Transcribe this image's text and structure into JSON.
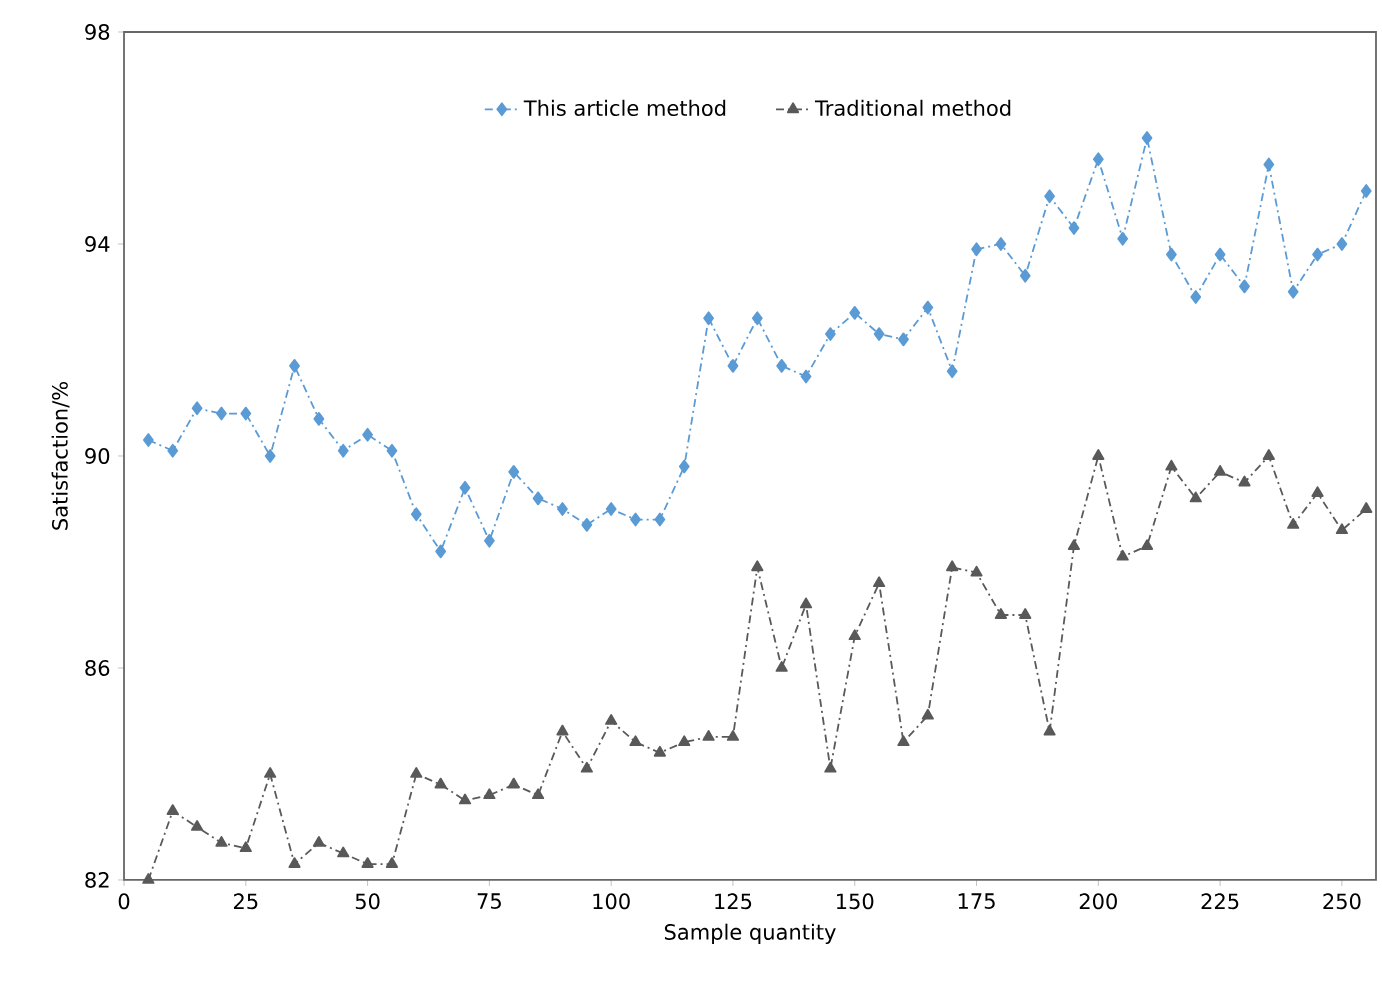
{
  "chart_data": {
    "type": "line",
    "xlabel": "Sample quantity",
    "ylabel": "Satisfaction/%",
    "x": [
      5,
      10,
      15,
      20,
      25,
      30,
      35,
      40,
      45,
      50,
      55,
      60,
      65,
      70,
      75,
      80,
      85,
      90,
      95,
      100,
      105,
      110,
      115,
      120,
      125,
      130,
      135,
      140,
      145,
      150,
      155,
      160,
      165,
      170,
      175,
      180,
      185,
      190,
      195,
      200,
      205,
      210,
      215,
      220,
      225,
      230,
      235,
      240,
      245,
      250,
      255
    ],
    "series": [
      {
        "name": "This article method",
        "color": "#5b9bd5",
        "marker": "diamond",
        "values": [
          90.3,
          90.1,
          90.9,
          90.8,
          90.8,
          90.0,
          91.7,
          90.7,
          90.1,
          90.4,
          90.1,
          88.9,
          88.2,
          89.4,
          88.4,
          89.7,
          89.2,
          89.0,
          88.7,
          89.0,
          88.8,
          88.8,
          89.8,
          92.6,
          91.7,
          92.6,
          91.7,
          91.5,
          92.3,
          92.7,
          92.3,
          92.2,
          92.8,
          91.6,
          93.9,
          94.0,
          93.4,
          94.9,
          94.3,
          95.6,
          94.1,
          96.0,
          93.8,
          93.0,
          93.8,
          93.2,
          95.5,
          93.1,
          93.8,
          94.0,
          95.0
        ]
      },
      {
        "name": "Traditional method",
        "color": "#595959",
        "marker": "triangle",
        "values": [
          82.0,
          83.3,
          83.0,
          82.7,
          82.6,
          84.0,
          82.3,
          82.7,
          82.5,
          82.3,
          82.3,
          84.0,
          83.8,
          83.5,
          83.6,
          83.8,
          83.6,
          84.8,
          84.1,
          85.0,
          84.6,
          84.4,
          84.6,
          84.7,
          84.7,
          87.9,
          86.0,
          87.2,
          84.1,
          86.6,
          87.6,
          84.6,
          85.1,
          87.9,
          87.8,
          87.0,
          87.0,
          84.8,
          88.3,
          90.0,
          88.1,
          88.3,
          89.8,
          89.2,
          89.7,
          89.5,
          90.0,
          88.7,
          89.3,
          88.6,
          89.0
        ]
      }
    ],
    "xlim": [
      0,
      257
    ],
    "ylim": [
      82,
      98
    ],
    "xticks": [
      0,
      25,
      50,
      75,
      100,
      125,
      150,
      175,
      200,
      225,
      250
    ],
    "yticks": [
      82,
      86,
      90,
      94,
      98
    ],
    "grid": false,
    "legend": "top",
    "line_style": "dashed"
  }
}
